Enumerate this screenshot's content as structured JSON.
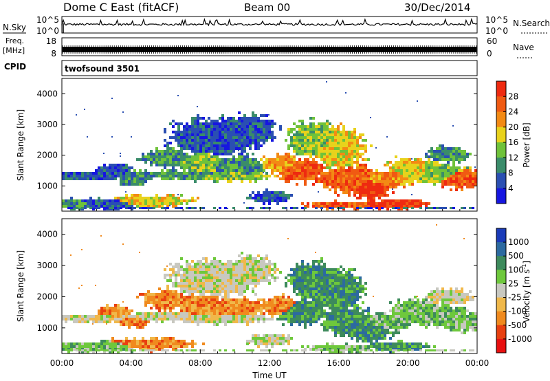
{
  "header": {
    "station": "Dome C East (fitACF)",
    "beam": "Beam 00",
    "date": "30/Dec/2014"
  },
  "top_panels": {
    "nsky_label": "N.Sky",
    "nsky_ticks": [
      "10^5",
      "10^0"
    ],
    "freq_label_1": "Freq.",
    "freq_label_2": "[MHz]",
    "freq_ticks": [
      "18",
      "8"
    ],
    "cpid_label": "CPID",
    "cpid_value": "twofsound 3501",
    "nsearch_label": "N.Search",
    "nsearch_ticks": [
      "10^5",
      "10^0"
    ],
    "nave_label": "Nave",
    "nave_ticks": [
      "60",
      "0"
    ]
  },
  "chart_data": [
    {
      "type": "heatmap",
      "name": "power",
      "ylabel": "Slant Range [km]",
      "ylim": [
        180,
        4500
      ],
      "yticks": [
        1000,
        2000,
        3000,
        4000
      ],
      "xlim": [
        0,
        24
      ],
      "colorbar": {
        "label": "Power [dB]",
        "ticks": [
          "28",
          "24",
          "20",
          "16",
          "12",
          "8",
          "4"
        ],
        "colors": [
          "#1616e0",
          "#2a4fb2",
          "#3a8c6a",
          "#6fc23a",
          "#e8d21c",
          "#f38a14",
          "#ee2a10"
        ]
      }
    },
    {
      "type": "heatmap",
      "name": "velocity",
      "ylabel": "Slant Range [km]",
      "xlabel": "Time UT",
      "ylim": [
        180,
        4500
      ],
      "yticks": [
        1000,
        2000,
        3000,
        4000
      ],
      "xlim": [
        0,
        24
      ],
      "xticks": [
        "00:00",
        "04:00",
        "08:00",
        "12:00",
        "16:00",
        "20:00",
        "00:00"
      ],
      "colorbar": {
        "label": "Velocity [m s",
        "label_sup": "-1",
        "label_end": "]",
        "ticks": [
          "1000",
          "500",
          "100",
          "25",
          "-25",
          "-100",
          "-500",
          "-1000"
        ],
        "colors": [
          "#1a3bb8",
          "#2c6aa0",
          "#3d8a5c",
          "#6ec83c",
          "#c8c8c0",
          "#f0b84a",
          "#f08a1e",
          "#e84010",
          "#e81010"
        ]
      }
    }
  ]
}
